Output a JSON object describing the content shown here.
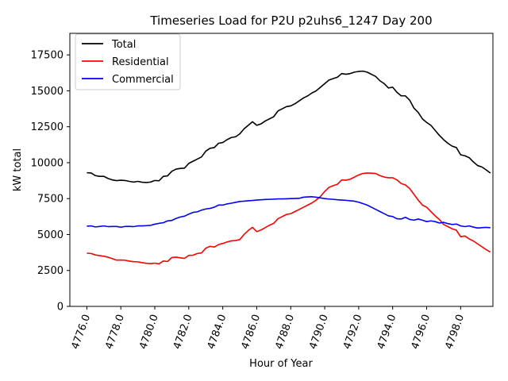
{
  "chart_data": {
    "type": "line",
    "title": "Timeseries Load for P2U p2uhs6_1247  Day 200",
    "xlabel": "Hour of Year",
    "ylabel": "kW total",
    "xlim": [
      4775.0,
      4799.9
    ],
    "ylim": [
      0,
      19000
    ],
    "x_ticks": [
      4776,
      4778,
      4780,
      4782,
      4784,
      4786,
      4788,
      4790,
      4792,
      4794,
      4796,
      4798
    ],
    "x_tick_labels": [
      "4776.0",
      "4778.0",
      "4780.0",
      "4782.0",
      "4784.0",
      "4786.0",
      "4788.0",
      "4790.0",
      "4792.0",
      "4794.0",
      "4796.0",
      "4798.0"
    ],
    "y_ticks": [
      0,
      2500,
      5000,
      7500,
      10000,
      12500,
      15000,
      17500
    ],
    "y_tick_labels": [
      "0",
      "2500",
      "5000",
      "7500",
      "10000",
      "12500",
      "15000",
      "17500"
    ],
    "legend_position": "top-left",
    "grid": false,
    "x": [
      4776.0,
      4776.25,
      4776.5,
      4776.75,
      4777.0,
      4777.25,
      4777.5,
      4777.75,
      4778.0,
      4778.25,
      4778.5,
      4778.75,
      4779.0,
      4779.25,
      4779.5,
      4779.75,
      4780.0,
      4780.25,
      4780.5,
      4780.75,
      4781.0,
      4781.25,
      4781.5,
      4781.75,
      4782.0,
      4782.25,
      4782.5,
      4782.75,
      4783.0,
      4783.25,
      4783.5,
      4783.75,
      4784.0,
      4784.25,
      4784.5,
      4784.75,
      4785.0,
      4785.25,
      4785.5,
      4785.75,
      4786.0,
      4786.25,
      4786.5,
      4786.75,
      4787.0,
      4787.25,
      4787.5,
      4787.75,
      4788.0,
      4788.25,
      4788.5,
      4788.75,
      4789.0,
      4789.25,
      4789.5,
      4789.75,
      4790.0,
      4790.25,
      4790.5,
      4790.75,
      4791.0,
      4791.25,
      4791.5,
      4791.75,
      4792.0,
      4792.25,
      4792.5,
      4792.75,
      4793.0,
      4793.25,
      4793.5,
      4793.75,
      4794.0,
      4794.25,
      4794.5,
      4794.75,
      4795.0,
      4795.25,
      4795.5,
      4795.75,
      4796.0,
      4796.25,
      4796.5,
      4796.75,
      4797.0,
      4797.25,
      4797.5,
      4797.75,
      4798.0,
      4798.25,
      4798.5,
      4798.75,
      4799.0,
      4799.25,
      4799.5,
      4799.75
    ],
    "series": [
      {
        "name": "Total",
        "color": "#000000",
        "values": [
          9300,
          9280,
          9100,
          9050,
          9050,
          8900,
          8800,
          8750,
          8780,
          8760,
          8700,
          8650,
          8700,
          8640,
          8620,
          8650,
          8760,
          8740,
          9050,
          9080,
          9400,
          9550,
          9600,
          9620,
          9950,
          10100,
          10250,
          10400,
          10800,
          11000,
          11050,
          11350,
          11400,
          11600,
          11750,
          11800,
          12000,
          12350,
          12600,
          12850,
          12600,
          12700,
          12900,
          13050,
          13200,
          13600,
          13750,
          13900,
          13950,
          14100,
          14300,
          14500,
          14650,
          14850,
          15000,
          15250,
          15500,
          15750,
          15850,
          15950,
          16200,
          16150,
          16200,
          16300,
          16350,
          16370,
          16300,
          16150,
          16000,
          15700,
          15500,
          15200,
          15250,
          14900,
          14650,
          14650,
          14350,
          13800,
          13500,
          13050,
          12800,
          12600,
          12250,
          11900,
          11600,
          11350,
          11150,
          11050,
          10550,
          10480,
          10350,
          10050,
          9800,
          9700,
          9500,
          9280
        ]
      },
      {
        "name": "Residential",
        "color": "#ff0000",
        "values": [
          3700,
          3680,
          3580,
          3530,
          3490,
          3420,
          3320,
          3220,
          3230,
          3210,
          3150,
          3110,
          3100,
          3040,
          3000,
          2980,
          3010,
          2960,
          3160,
          3120,
          3400,
          3430,
          3380,
          3340,
          3550,
          3560,
          3680,
          3720,
          4050,
          4180,
          4130,
          4300,
          4380,
          4480,
          4560,
          4580,
          4650,
          5000,
          5280,
          5500,
          5200,
          5320,
          5480,
          5650,
          5780,
          6100,
          6250,
          6400,
          6450,
          6600,
          6750,
          6900,
          7050,
          7200,
          7400,
          7650,
          8000,
          8280,
          8400,
          8500,
          8800,
          8780,
          8850,
          9000,
          9150,
          9250,
          9280,
          9270,
          9250,
          9100,
          9000,
          8950,
          8950,
          8800,
          8550,
          8450,
          8200,
          7800,
          7400,
          7050,
          6900,
          6600,
          6300,
          6050,
          5700,
          5550,
          5400,
          5300,
          4850,
          4900,
          4700,
          4550,
          4350,
          4150,
          3950,
          3780
        ]
      },
      {
        "name": "Commercial",
        "color": "#0000ff",
        "values": [
          5580,
          5600,
          5530,
          5560,
          5600,
          5550,
          5560,
          5560,
          5510,
          5560,
          5570,
          5550,
          5600,
          5600,
          5620,
          5640,
          5720,
          5780,
          5820,
          5950,
          5980,
          6120,
          6220,
          6280,
          6420,
          6540,
          6580,
          6700,
          6780,
          6820,
          6900,
          7050,
          7050,
          7130,
          7180,
          7240,
          7300,
          7320,
          7350,
          7370,
          7400,
          7420,
          7440,
          7450,
          7460,
          7480,
          7480,
          7490,
          7500,
          7510,
          7520,
          7600,
          7620,
          7630,
          7600,
          7550,
          7500,
          7470,
          7450,
          7420,
          7400,
          7380,
          7350,
          7320,
          7250,
          7150,
          7050,
          6900,
          6750,
          6600,
          6450,
          6300,
          6250,
          6100,
          6080,
          6200,
          6050,
          6000,
          6080,
          6000,
          5900,
          5950,
          5900,
          5800,
          5850,
          5760,
          5700,
          5730,
          5600,
          5550,
          5600,
          5520,
          5450,
          5480,
          5500,
          5470
        ]
      }
    ]
  }
}
